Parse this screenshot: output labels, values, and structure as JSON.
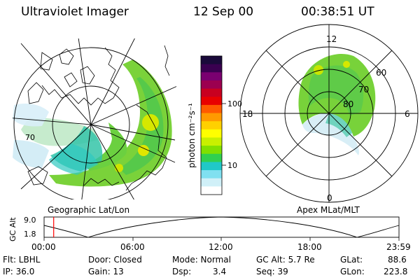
{
  "header": {
    "title": "Ultraviolet Imager",
    "date": "12 Sep 00",
    "time": "00:38:51 UT"
  },
  "colorbar": {
    "unit_label": "photon cm⁻²s⁻¹",
    "ticks": [
      "100",
      "10"
    ],
    "colors": [
      "#1a0a3a",
      "#3a0050",
      "#7a0070",
      "#9c0050",
      "#c80020",
      "#e80000",
      "#ff5a00",
      "#ff9a00",
      "#ffd000",
      "#ffff00",
      "#c8f000",
      "#80e000",
      "#30d050",
      "#20c8c8",
      "#80e0f0",
      "#d0f0f8",
      "#ffffff"
    ]
  },
  "geo_panel": {
    "caption": "Geographic Lat/Lon",
    "lat_label": "70"
  },
  "mlt_panel": {
    "caption": "Apex MLat/MLT",
    "mlt_labels": {
      "top": "12",
      "left": "18",
      "right": "6",
      "bottom": "0"
    },
    "lat_labels": [
      "60",
      "70",
      "80"
    ]
  },
  "altitude_plot": {
    "ylabel": "GC Alt",
    "yticks": [
      "9.0",
      "1.8"
    ],
    "xticks": [
      "00:00",
      "06:00",
      "12:00",
      "18:00",
      "23:59"
    ],
    "marker_time_hours": 0.65,
    "marker_color": "#ff0000"
  },
  "footer": {
    "row1": [
      "Flt: LBHL",
      "Door: Closed",
      "Mode: Normal",
      "GC Alt: 5.7 Re",
      "GLat:",
      "88.6"
    ],
    "row2": [
      "IP: 36.0",
      "Gain: 13",
      "Dsp:",
      "3.4",
      "Seq: 39",
      "GLon:",
      "223.8"
    ]
  }
}
